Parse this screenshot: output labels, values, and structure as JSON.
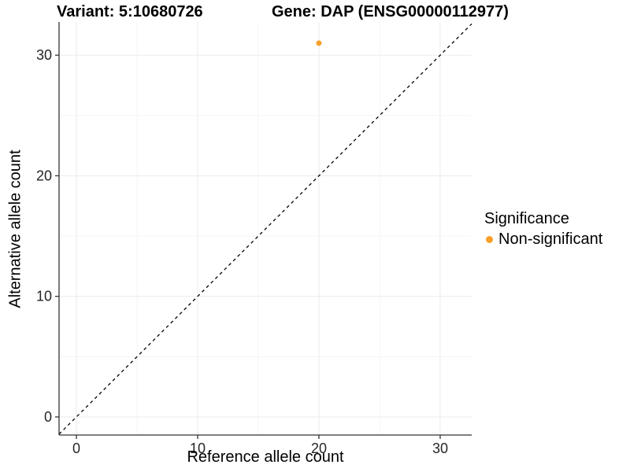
{
  "header": {
    "title_left": "Variant: 5:10680726",
    "title_right": "Gene: DAP (ENSG00000112977)"
  },
  "chart_data": {
    "type": "scatter",
    "xlabel": "Reference allele count",
    "ylabel": "Alternative allele count",
    "xlim": [
      -1.43,
      32.6
    ],
    "ylim": [
      -1.5,
      32.75
    ],
    "xticks": [
      0,
      10,
      20,
      30
    ],
    "yticks": [
      0,
      10,
      20,
      30
    ],
    "xticks_minor": [
      5,
      15,
      25
    ],
    "yticks_minor": [
      5,
      15,
      25
    ],
    "grid": true,
    "points": [
      {
        "x": 20,
        "y": 31,
        "label": "Non-significant"
      }
    ],
    "reference_line": {
      "slope": 1,
      "intercept": 0,
      "style": "dashed"
    },
    "legend": {
      "title": "Significance",
      "position": "right",
      "entries": [
        {
          "label": "Non-significant",
          "color": "#F9A029"
        }
      ]
    }
  },
  "colors": {
    "point": "#F9A029",
    "grid_major": "#EBEBEB",
    "grid_minor": "#F5F5F5",
    "axis_line": "#333333",
    "tick_text": "#262626",
    "reference_line": "#000000",
    "background": "#FFFFFF"
  }
}
